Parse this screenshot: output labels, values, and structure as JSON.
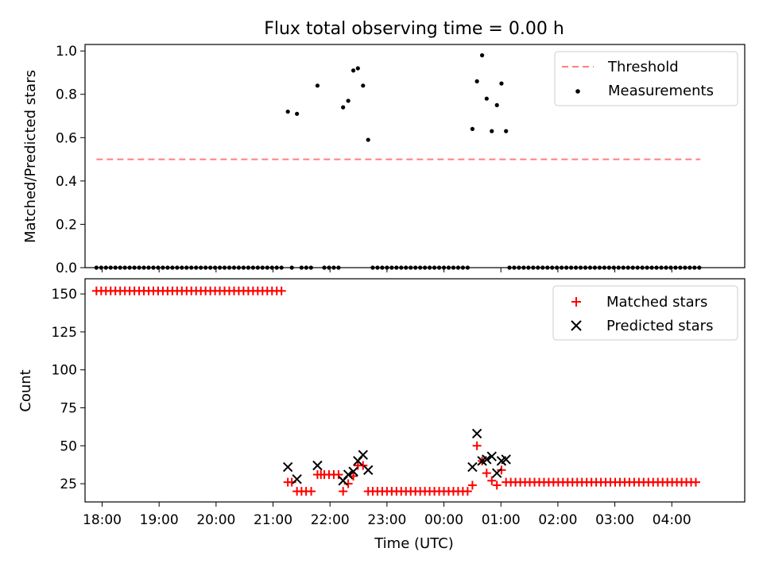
{
  "figure": {
    "title": "Flux total observing time = 0.00 h"
  },
  "chart_data": [
    {
      "type": "scatter",
      "ylabel": "Matched/Predicted stars",
      "ylim": [
        0,
        1.03
      ],
      "yticks": [
        0.0,
        0.2,
        0.4,
        0.6,
        0.8,
        1.0
      ],
      "ytick_labels": [
        "0.0",
        "0.2",
        "0.4",
        "0.6",
        "0.8",
        "1.0"
      ],
      "xlim_hours": [
        17.7,
        29.28
      ],
      "legend_position": "upper-right",
      "threshold": {
        "name": "Threshold",
        "value": 0.5,
        "x_start": 17.9,
        "x_end": 28.5,
        "color": "#ff7f7f"
      },
      "series": [
        {
          "name": "Measurements",
          "color": "#000000",
          "marker": "dot",
          "points": [
            {
              "x": 21.26,
              "y": 0.72
            },
            {
              "x": 21.42,
              "y": 0.71
            },
            {
              "x": 21.78,
              "y": 0.84
            },
            {
              "x": 22.23,
              "y": 0.74
            },
            {
              "x": 22.32,
              "y": 0.77
            },
            {
              "x": 22.41,
              "y": 0.91
            },
            {
              "x": 22.49,
              "y": 0.92
            },
            {
              "x": 22.58,
              "y": 0.84
            },
            {
              "x": 22.67,
              "y": 0.59
            },
            {
              "x": 24.5,
              "y": 0.64
            },
            {
              "x": 24.58,
              "y": 0.86
            },
            {
              "x": 24.67,
              "y": 0.98
            },
            {
              "x": 24.75,
              "y": 0.78
            },
            {
              "x": 24.84,
              "y": 0.63
            },
            {
              "x": 24.93,
              "y": 0.75
            },
            {
              "x": 25.01,
              "y": 0.85
            },
            {
              "x": 25.09,
              "y": 0.63
            }
          ],
          "zero_ranges": [
            {
              "start": 17.9,
              "end": 21.2,
              "step": 0.0833
            },
            {
              "start": 21.33,
              "end": 21.33,
              "step": 0.0833
            },
            {
              "start": 21.5,
              "end": 21.67,
              "step": 0.0833
            },
            {
              "start": 21.9,
              "end": 22.15,
              "step": 0.0833
            },
            {
              "start": 22.75,
              "end": 24.42,
              "step": 0.0833
            },
            {
              "start": 25.15,
              "end": 28.5,
              "step": 0.0833
            }
          ]
        }
      ]
    },
    {
      "type": "scatter",
      "xlabel": "Time (UTC)",
      "ylabel": "Count",
      "ylim": [
        13,
        160
      ],
      "yticks": [
        25,
        50,
        75,
        100,
        125,
        150
      ],
      "ytick_labels": [
        "25",
        "50",
        "75",
        "100",
        "125",
        "150"
      ],
      "xlim_hours": [
        17.7,
        29.28
      ],
      "xticks_hours": [
        18,
        19,
        20,
        21,
        22,
        23,
        24,
        25,
        26,
        27,
        28
      ],
      "xtick_labels": [
        "18:00",
        "19:00",
        "20:00",
        "21:00",
        "22:00",
        "23:00",
        "00:00",
        "01:00",
        "02:00",
        "03:00",
        "04:00"
      ],
      "legend_position": "upper-right",
      "series": [
        {
          "name": "Matched stars",
          "color": "#ff0000",
          "marker": "plus",
          "ranges": [
            {
              "start": 17.9,
              "end": 21.2,
              "step": 0.0833,
              "value": 152
            },
            {
              "start": 21.9,
              "end": 22.15,
              "step": 0.0833,
              "value": 31
            },
            {
              "start": 22.75,
              "end": 24.42,
              "step": 0.0833,
              "value": 20
            },
            {
              "start": 25.09,
              "end": 28.5,
              "step": 0.0833,
              "value": 26
            }
          ],
          "points": [
            {
              "x": 21.26,
              "y": 26
            },
            {
              "x": 21.33,
              "y": 26
            },
            {
              "x": 21.42,
              "y": 20
            },
            {
              "x": 21.5,
              "y": 20
            },
            {
              "x": 21.58,
              "y": 20
            },
            {
              "x": 21.67,
              "y": 20
            },
            {
              "x": 21.78,
              "y": 31
            },
            {
              "x": 21.84,
              "y": 31
            },
            {
              "x": 22.23,
              "y": 20
            },
            {
              "x": 22.32,
              "y": 25
            },
            {
              "x": 22.41,
              "y": 30
            },
            {
              "x": 22.49,
              "y": 37
            },
            {
              "x": 22.58,
              "y": 37
            },
            {
              "x": 22.67,
              "y": 20
            },
            {
              "x": 24.5,
              "y": 24
            },
            {
              "x": 24.58,
              "y": 50
            },
            {
              "x": 24.67,
              "y": 40
            },
            {
              "x": 24.75,
              "y": 32
            },
            {
              "x": 24.84,
              "y": 27
            },
            {
              "x": 24.93,
              "y": 24
            },
            {
              "x": 25.01,
              "y": 34
            }
          ]
        },
        {
          "name": "Predicted stars",
          "color": "#000000",
          "marker": "x",
          "points": [
            {
              "x": 21.26,
              "y": 36
            },
            {
              "x": 21.42,
              "y": 28
            },
            {
              "x": 21.78,
              "y": 37
            },
            {
              "x": 22.23,
              "y": 27
            },
            {
              "x": 22.32,
              "y": 31
            },
            {
              "x": 22.41,
              "y": 33
            },
            {
              "x": 22.49,
              "y": 40
            },
            {
              "x": 22.58,
              "y": 44
            },
            {
              "x": 22.67,
              "y": 34
            },
            {
              "x": 24.5,
              "y": 36
            },
            {
              "x": 24.58,
              "y": 58
            },
            {
              "x": 24.67,
              "y": 40
            },
            {
              "x": 24.75,
              "y": 41
            },
            {
              "x": 24.84,
              "y": 43
            },
            {
              "x": 24.93,
              "y": 32
            },
            {
              "x": 25.01,
              "y": 40
            },
            {
              "x": 25.09,
              "y": 41
            }
          ]
        }
      ]
    }
  ]
}
